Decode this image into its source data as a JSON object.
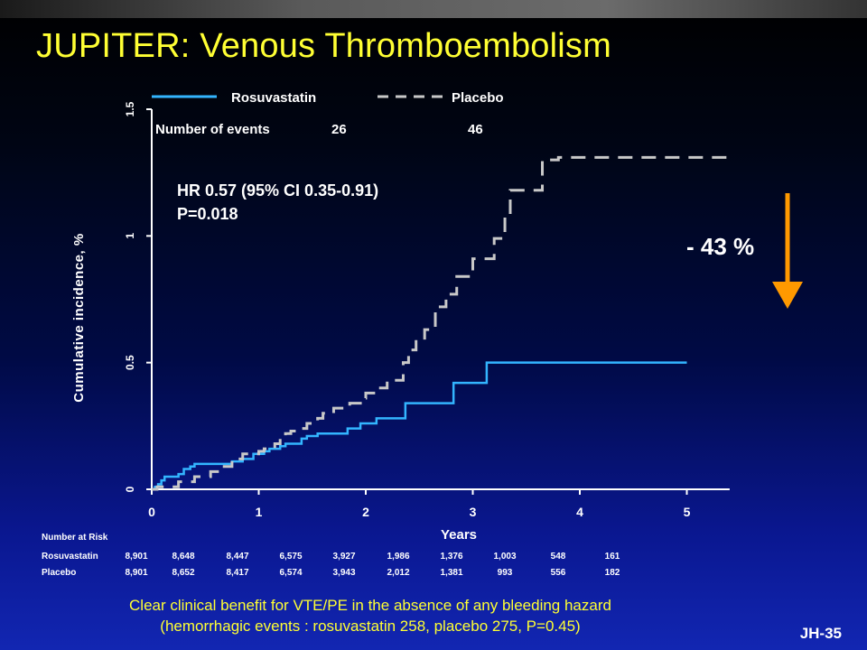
{
  "slide": {
    "title": "JUPITER: Venous Thromboembolism",
    "footer_line1": "Clear clinical benefit for VTE/PE in the absence of any bleeding hazard",
    "footer_line2": "(hemorrhagic events : rosuvastatin 258, placebo 275, P=0.45)",
    "slide_id": "JH-35",
    "reduction_label": "- 43 %",
    "colors": {
      "title": "#ffff33",
      "rosuvastatin": "#33b5ff",
      "placebo": "#c8c8c8",
      "arrow": "#ff9900"
    }
  },
  "chart_data": {
    "type": "line",
    "xlabel": "Years",
    "ylabel": "Cumulative incidence, %",
    "xlim": [
      0,
      5.4
    ],
    "ylim": [
      0,
      1.5
    ],
    "xticks": [
      "0",
      "1",
      "2",
      "3",
      "4",
      "5"
    ],
    "yticks": [
      "0",
      "0.5",
      "1",
      "1.5"
    ],
    "legend": {
      "position": "top",
      "rosuvastatin_label": "Rosuvastatin",
      "placebo_label": "Placebo"
    },
    "events": {
      "label": "Number of events",
      "rosuvastatin": "26",
      "placebo": "46"
    },
    "annotation": {
      "hr": "HR 0.57 (95% CI 0.35-0.91)",
      "p": "P=0.018"
    },
    "series": [
      {
        "name": "Rosuvastatin",
        "style": "solid",
        "points": [
          [
            0.0,
            0.0
          ],
          [
            0.03,
            0.01
          ],
          [
            0.06,
            0.02
          ],
          [
            0.09,
            0.035
          ],
          [
            0.12,
            0.05
          ],
          [
            0.25,
            0.06
          ],
          [
            0.3,
            0.08
          ],
          [
            0.36,
            0.09
          ],
          [
            0.4,
            0.1
          ],
          [
            0.75,
            0.11
          ],
          [
            0.85,
            0.12
          ],
          [
            0.95,
            0.14
          ],
          [
            1.05,
            0.15
          ],
          [
            1.1,
            0.16
          ],
          [
            1.2,
            0.17
          ],
          [
            1.25,
            0.18
          ],
          [
            1.4,
            0.2
          ],
          [
            1.45,
            0.21
          ],
          [
            1.55,
            0.22
          ],
          [
            1.83,
            0.24
          ],
          [
            1.95,
            0.26
          ],
          [
            2.1,
            0.28
          ],
          [
            2.37,
            0.34
          ],
          [
            2.82,
            0.42
          ],
          [
            3.13,
            0.5
          ],
          [
            5.0,
            0.5
          ]
        ]
      },
      {
        "name": "Placebo",
        "style": "dashed",
        "points": [
          [
            0.0,
            0.0
          ],
          [
            0.05,
            0.01
          ],
          [
            0.25,
            0.03
          ],
          [
            0.4,
            0.05
          ],
          [
            0.55,
            0.07
          ],
          [
            0.65,
            0.09
          ],
          [
            0.75,
            0.12
          ],
          [
            0.85,
            0.14
          ],
          [
            1.0,
            0.15
          ],
          [
            1.05,
            0.16
          ],
          [
            1.15,
            0.18
          ],
          [
            1.2,
            0.2
          ],
          [
            1.25,
            0.22
          ],
          [
            1.3,
            0.23
          ],
          [
            1.4,
            0.24
          ],
          [
            1.45,
            0.26
          ],
          [
            1.55,
            0.28
          ],
          [
            1.6,
            0.3
          ],
          [
            1.7,
            0.32
          ],
          [
            1.85,
            0.34
          ],
          [
            1.95,
            0.36
          ],
          [
            2.0,
            0.38
          ],
          [
            2.1,
            0.4
          ],
          [
            2.2,
            0.43
          ],
          [
            2.35,
            0.5
          ],
          [
            2.4,
            0.55
          ],
          [
            2.47,
            0.59
          ],
          [
            2.55,
            0.63
          ],
          [
            2.65,
            0.72
          ],
          [
            2.75,
            0.77
          ],
          [
            2.85,
            0.84
          ],
          [
            3.0,
            0.91
          ],
          [
            3.2,
            0.99
          ],
          [
            3.3,
            1.08
          ],
          [
            3.35,
            1.18
          ],
          [
            3.65,
            1.3
          ],
          [
            3.8,
            1.31
          ],
          [
            5.4,
            1.31
          ]
        ]
      }
    ],
    "number_at_risk": {
      "title": "Number at Risk",
      "rosuvastatin_label": "Rosuvastatin",
      "placebo_label": "Placebo",
      "rosuvastatin": [
        "8,901",
        "8,648",
        "8,447",
        "6,575",
        "3,927",
        "1,986",
        "1,376",
        "1,003",
        "548",
        "161"
      ],
      "placebo": [
        "8,901",
        "8,652",
        "8,417",
        "6,574",
        "3,943",
        "2,012",
        "1,381",
        "993",
        "556",
        "182"
      ]
    }
  }
}
